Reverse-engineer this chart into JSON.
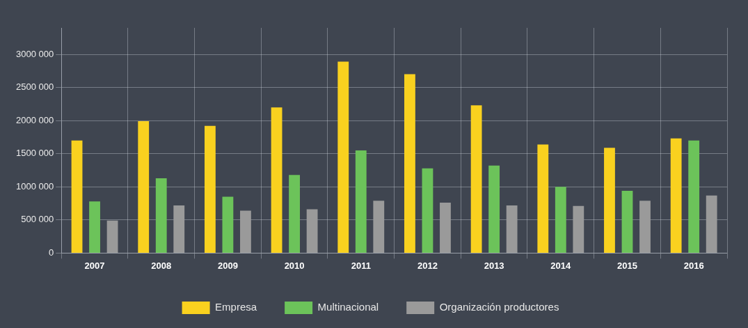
{
  "chart_data": {
    "type": "bar",
    "categories": [
      "2007",
      "2008",
      "2009",
      "2010",
      "2011",
      "2012",
      "2013",
      "2014",
      "2015",
      "2016"
    ],
    "series": [
      {
        "name": "Empresa",
        "color": "#f9d11f",
        "values": [
          1700000,
          1990000,
          1920000,
          2200000,
          2890000,
          2700000,
          2230000,
          1640000,
          1590000,
          1730000
        ]
      },
      {
        "name": "Multinacional",
        "color": "#6cc35a",
        "values": [
          780000,
          1130000,
          850000,
          1180000,
          1550000,
          1280000,
          1320000,
          1000000,
          940000,
          1700000
        ]
      },
      {
        "name": "Organización productores",
        "color": "#9a9a9a",
        "values": [
          490000,
          720000,
          640000,
          660000,
          790000,
          760000,
          720000,
          710000,
          790000,
          870000
        ]
      }
    ],
    "ylim": [
      0,
      3400000
    ],
    "yticks": [
      {
        "value": 0,
        "label": "0"
      },
      {
        "value": 500000,
        "label": "500 000"
      },
      {
        "value": 1000000,
        "label": "1000 000"
      },
      {
        "value": 1500000,
        "label": "1500 000"
      },
      {
        "value": 2000000,
        "label": "2000 000"
      },
      {
        "value": 2500000,
        "label": "2500 000"
      },
      {
        "value": 3000000,
        "label": "3000 000"
      }
    ],
    "grid": true,
    "legend": "bottom"
  }
}
